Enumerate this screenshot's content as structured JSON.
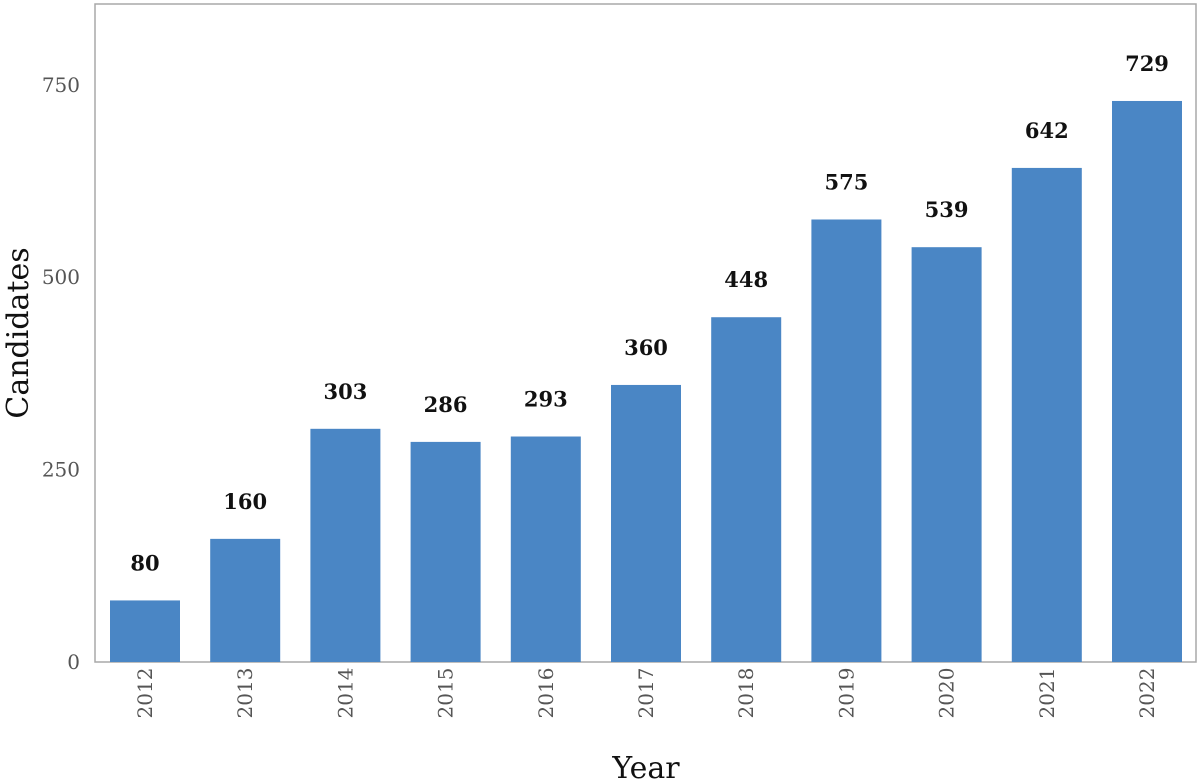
{
  "chart_data": {
    "type": "bar",
    "categories": [
      "2012",
      "2013",
      "2014",
      "2015",
      "2016",
      "2017",
      "2018",
      "2019",
      "2020",
      "2021",
      "2022"
    ],
    "values": [
      80,
      160,
      303,
      286,
      293,
      360,
      448,
      575,
      539,
      642,
      729
    ],
    "xlabel": "Year",
    "ylabel": "Candidates",
    "ylim": [
      0,
      855
    ],
    "yticks": [
      0,
      250,
      500,
      750
    ],
    "bar_color": "#4A86C5",
    "grid": false,
    "legend": "none"
  }
}
